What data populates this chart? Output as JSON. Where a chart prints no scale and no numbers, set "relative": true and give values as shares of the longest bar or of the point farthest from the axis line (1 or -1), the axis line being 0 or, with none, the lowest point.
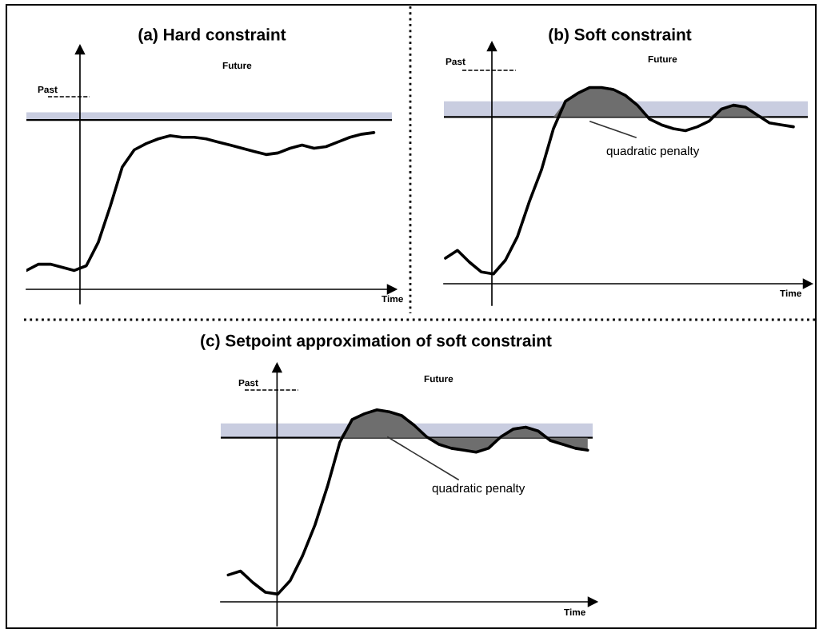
{
  "chart_data": [
    {
      "type": "line",
      "title": "(a) Hard constraint",
      "relative": true,
      "marker": "none",
      "line_style": "solid",
      "categories": [
        null,
        null,
        null,
        null,
        null,
        null,
        null,
        null,
        null,
        null,
        null,
        null,
        null,
        null,
        null,
        null,
        null,
        null,
        null,
        null,
        null,
        null,
        null,
        null,
        null,
        null,
        null,
        null,
        null,
        null
      ],
      "annotations": [
        "Past",
        "Future",
        "Time"
      ],
      "ref_lines": [
        {
          "axis": "y",
          "value": 1.08,
          "color": "#000000"
        }
      ],
      "bands": [
        {
          "axis": "y",
          "from": 1.08,
          "to": 1.13,
          "color": "#c9cde0"
        }
      ],
      "series": [
        {
          "color": "#000000",
          "values": [
            0.12,
            0.16,
            0.16,
            0.14,
            0.12,
            0.15,
            0.3,
            0.53,
            0.78,
            0.89,
            0.93,
            0.96,
            0.98,
            0.97,
            0.97,
            0.96,
            0.94,
            0.92,
            0.9,
            0.88,
            0.86,
            0.87,
            0.9,
            0.92,
            0.9,
            0.91,
            0.94,
            0.97,
            0.99,
            1.0
          ]
        }
      ]
    },
    {
      "type": "line",
      "title": "(b) Soft constraint",
      "relative": true,
      "marker": "none",
      "line_style": "solid",
      "categories": [
        null,
        null,
        null,
        null,
        null,
        null,
        null,
        null,
        null,
        null,
        null,
        null,
        null,
        null,
        null,
        null,
        null,
        null,
        null,
        null,
        null,
        null,
        null,
        null,
        null,
        null,
        null,
        null,
        null,
        null
      ],
      "annotations": [
        "Past",
        "Future",
        "Time",
        "quadratic penalty"
      ],
      "ref_lines": [
        {
          "axis": "y",
          "value": 0.85,
          "color": "#000000"
        }
      ],
      "bands": [
        {
          "axis": "y",
          "from": 0.85,
          "to": 0.93,
          "color": "#c9cde0"
        }
      ],
      "series": [
        {
          "color": "#000000",
          "values": [
            0.13,
            0.17,
            0.11,
            0.06,
            0.05,
            0.12,
            0.24,
            0.42,
            0.58,
            0.79,
            0.93,
            0.97,
            1.0,
            1.0,
            0.99,
            0.96,
            0.91,
            0.84,
            0.81,
            0.79,
            0.78,
            0.8,
            0.83,
            0.89,
            0.91,
            0.9,
            0.86,
            0.82,
            0.81,
            0.8
          ],
          "lower": [
            null,
            null,
            null,
            null,
            null,
            null,
            null,
            null,
            null,
            0.85,
            0.85,
            0.85,
            0.85,
            0.85,
            0.85,
            0.85,
            0.85,
            0.85,
            null,
            null,
            null,
            null,
            0.85,
            0.85,
            0.85,
            0.85,
            0.85,
            0.85,
            null,
            null
          ],
          "upper": [
            null,
            null,
            null,
            null,
            null,
            null,
            null,
            null,
            null,
            0.85,
            0.93,
            0.97,
            1.0,
            1.0,
            0.99,
            0.96,
            0.91,
            0.85,
            null,
            null,
            null,
            null,
            0.85,
            0.89,
            0.91,
            0.9,
            0.86,
            0.85,
            null,
            null
          ]
        }
      ]
    },
    {
      "type": "line",
      "title": "(c) Setpoint approximation of soft constraint",
      "relative": true,
      "marker": "none",
      "line_style": "solid",
      "categories": [
        null,
        null,
        null,
        null,
        null,
        null,
        null,
        null,
        null,
        null,
        null,
        null,
        null,
        null,
        null,
        null,
        null,
        null,
        null,
        null,
        null,
        null,
        null,
        null,
        null,
        null,
        null,
        null,
        null,
        null
      ],
      "annotations": [
        "Past",
        "Future",
        "Time",
        "quadratic penalty"
      ],
      "ref_lines": [
        {
          "axis": "y",
          "value": 0.855,
          "color": "#000000"
        }
      ],
      "bands": [
        {
          "axis": "y",
          "from": 0.855,
          "to": 0.93,
          "color": "#c9cde0"
        }
      ],
      "series": [
        {
          "color": "#000000",
          "values": [
            0.14,
            0.16,
            0.1,
            0.05,
            0.04,
            0.11,
            0.24,
            0.4,
            0.6,
            0.83,
            0.95,
            0.98,
            1.0,
            0.99,
            0.97,
            0.92,
            0.86,
            0.82,
            0.8,
            0.79,
            0.78,
            0.8,
            0.86,
            0.9,
            0.91,
            0.89,
            0.84,
            0.82,
            0.8,
            0.79
          ],
          "lower": [
            null,
            null,
            null,
            null,
            null,
            null,
            null,
            null,
            null,
            0.855,
            0.855,
            0.855,
            0.855,
            0.855,
            0.855,
            0.855,
            0.855,
            0.855,
            0.855,
            0.855,
            0.855,
            0.855,
            0.855,
            0.855,
            0.855,
            0.855,
            0.855,
            0.855,
            0.855,
            0.855
          ],
          "upper": [
            null,
            null,
            null,
            null,
            null,
            null,
            null,
            null,
            null,
            0.855,
            0.95,
            0.98,
            1.0,
            0.99,
            0.97,
            0.92,
            0.86,
            0.82,
            0.8,
            0.79,
            0.78,
            0.8,
            0.86,
            0.9,
            0.91,
            0.89,
            0.84,
            0.82,
            0.8,
            0.79
          ]
        }
      ]
    }
  ]
}
